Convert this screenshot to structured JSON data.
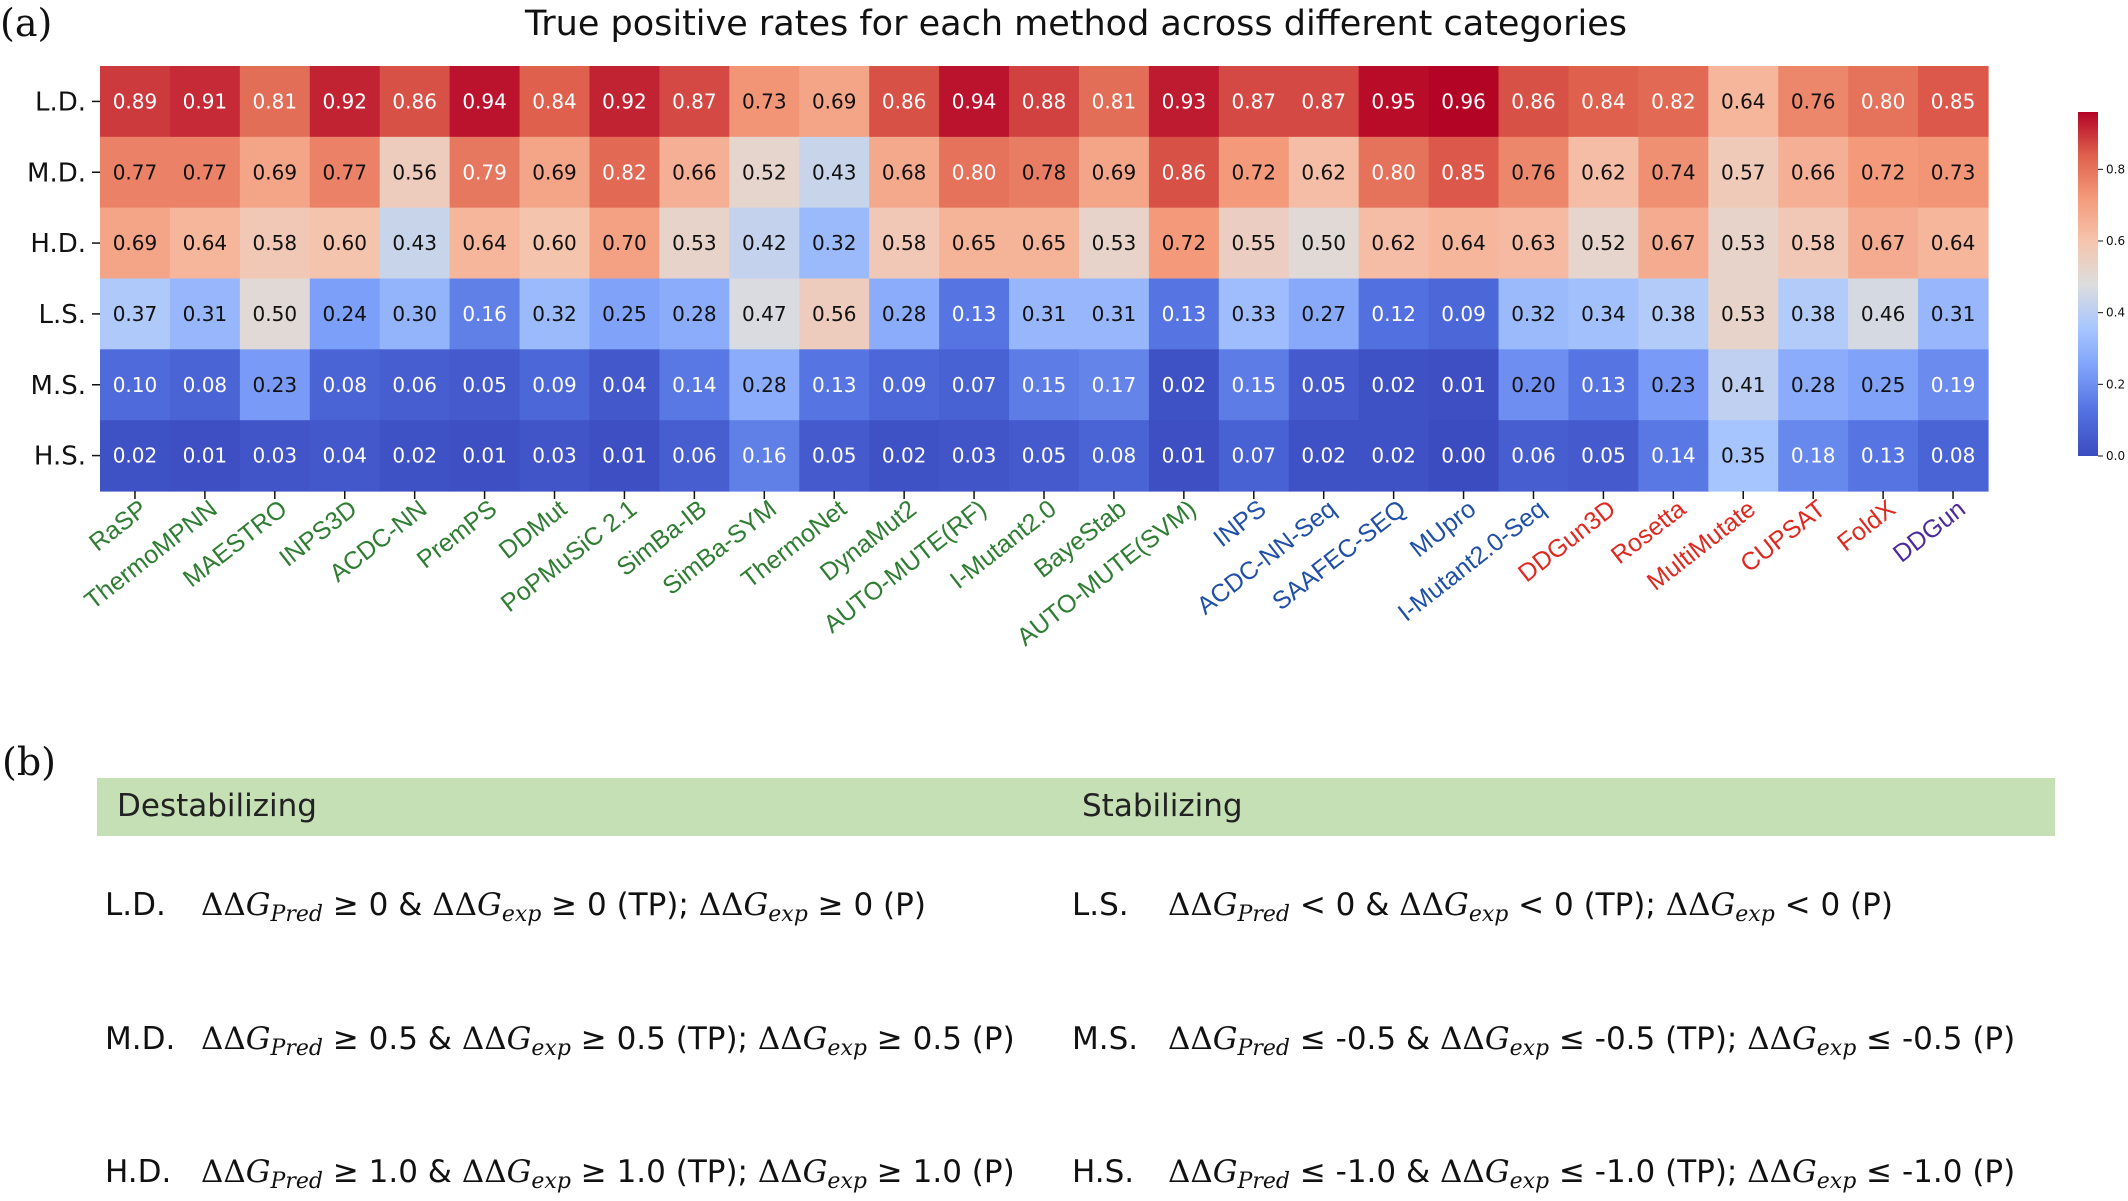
{
  "panel_a_label": "(a)",
  "panel_b_label": "(b)",
  "colors": {
    "group_green": "#2e7d32",
    "group_blue": "#1f4fa8",
    "group_red": "#e0281f",
    "group_purple": "#4b2a9c",
    "legend_bar": "#c5e0b4"
  },
  "chart_data": {
    "type": "heatmap",
    "title": "True positive rates for each method across different categories",
    "rows": [
      "L.D.",
      "M.D.",
      "H.D.",
      "L.S.",
      "M.S.",
      "H.S."
    ],
    "columns": [
      {
        "name": "RaSP",
        "group": "green"
      },
      {
        "name": "ThermoMPNN",
        "group": "green"
      },
      {
        "name": "MAESTRO",
        "group": "green"
      },
      {
        "name": "INPS3D",
        "group": "green"
      },
      {
        "name": "ACDC-NN",
        "group": "green"
      },
      {
        "name": "PremPS",
        "group": "green"
      },
      {
        "name": "DDMut",
        "group": "green"
      },
      {
        "name": "PoPMuSiC 2.1",
        "group": "green"
      },
      {
        "name": "SimBa-IB",
        "group": "green"
      },
      {
        "name": "SimBa-SYM",
        "group": "green"
      },
      {
        "name": "ThermoNet",
        "group": "green"
      },
      {
        "name": "DynaMut2",
        "group": "green"
      },
      {
        "name": "AUTO-MUTE(RF)",
        "group": "green"
      },
      {
        "name": "I-Mutant2.0",
        "group": "green"
      },
      {
        "name": "BayeStab",
        "group": "green"
      },
      {
        "name": "AUTO-MUTE(SVM)",
        "group": "green"
      },
      {
        "name": "INPS",
        "group": "blue"
      },
      {
        "name": "ACDC-NN-Seq",
        "group": "blue"
      },
      {
        "name": "SAAFEC-SEQ",
        "group": "blue"
      },
      {
        "name": "MUpro",
        "group": "blue"
      },
      {
        "name": "I-Mutant2.0-Seq",
        "group": "blue"
      },
      {
        "name": "DDGun3D",
        "group": "red"
      },
      {
        "name": "Rosetta",
        "group": "red"
      },
      {
        "name": "MultiMutate",
        "group": "red"
      },
      {
        "name": "CUPSAT",
        "group": "red"
      },
      {
        "name": "FoldX",
        "group": "red"
      },
      {
        "name": "DDGun",
        "group": "purple"
      }
    ],
    "values": [
      [
        0.89,
        0.91,
        0.81,
        0.92,
        0.86,
        0.94,
        0.84,
        0.92,
        0.87,
        0.73,
        0.69,
        0.86,
        0.94,
        0.88,
        0.81,
        0.93,
        0.87,
        0.87,
        0.95,
        0.96,
        0.86,
        0.84,
        0.82,
        0.64,
        0.76,
        0.8,
        0.85
      ],
      [
        0.77,
        0.77,
        0.69,
        0.77,
        0.56,
        0.79,
        0.69,
        0.82,
        0.66,
        0.52,
        0.43,
        0.68,
        0.8,
        0.78,
        0.69,
        0.86,
        0.72,
        0.62,
        0.8,
        0.85,
        0.76,
        0.62,
        0.74,
        0.57,
        0.66,
        0.72,
        0.73
      ],
      [
        0.69,
        0.64,
        0.58,
        0.6,
        0.43,
        0.64,
        0.6,
        0.7,
        0.53,
        0.42,
        0.32,
        0.58,
        0.65,
        0.65,
        0.53,
        0.72,
        0.55,
        0.5,
        0.62,
        0.64,
        0.63,
        0.52,
        0.67,
        0.53,
        0.58,
        0.67,
        0.64
      ],
      [
        0.37,
        0.31,
        0.5,
        0.24,
        0.3,
        0.16,
        0.32,
        0.25,
        0.28,
        0.47,
        0.56,
        0.28,
        0.13,
        0.31,
        0.31,
        0.13,
        0.33,
        0.27,
        0.12,
        0.09,
        0.32,
        0.34,
        0.38,
        0.53,
        0.38,
        0.46,
        0.31
      ],
      [
        0.1,
        0.08,
        0.23,
        0.08,
        0.06,
        0.05,
        0.09,
        0.04,
        0.14,
        0.28,
        0.13,
        0.09,
        0.07,
        0.15,
        0.17,
        0.02,
        0.15,
        0.05,
        0.02,
        0.01,
        0.2,
        0.13,
        0.23,
        0.41,
        0.28,
        0.25,
        0.19
      ],
      [
        0.02,
        0.01,
        0.03,
        0.04,
        0.02,
        0.01,
        0.03,
        0.01,
        0.06,
        0.16,
        0.05,
        0.02,
        0.03,
        0.05,
        0.08,
        0.01,
        0.07,
        0.02,
        0.02,
        0.0,
        0.06,
        0.05,
        0.14,
        0.35,
        0.18,
        0.13,
        0.08
      ]
    ],
    "colorbar": {
      "colormap": "coolwarm",
      "range": [
        0.0,
        0.96
      ],
      "ticks": [
        "0.0",
        "0.2",
        "0.4",
        "0.6",
        "0.8"
      ]
    },
    "cell_text_format": "2 decimals"
  },
  "panel_b": {
    "destabilizing_heading": "Destabilizing",
    "stabilizing_heading": "Stabilizing",
    "rows": [
      {
        "d_code": "L.D.",
        "d_thr": "≥ 0",
        "d_p": "≥ 0",
        "s_code": "L.S.",
        "s_thr": "< 0",
        "s_p": "< 0"
      },
      {
        "d_code": "M.D.",
        "d_thr": "≥ 0.5",
        "d_p": "≥ 0.5",
        "s_code": "M.S.",
        "s_thr": "≤ -0.5",
        "s_p": "≤ -0.5"
      },
      {
        "d_code": "H.D.",
        "d_thr": "≥ 1.0",
        "d_p": "≥ 1.0",
        "s_code": "H.S.",
        "s_thr": "≤ -1.0",
        "s_p": "≤ -1.0"
      }
    ],
    "symbols": {
      "ddg": "ΔΔ",
      "g": "G",
      "pred_sub": "Pred",
      "exp_sub": "exp",
      "amp": "&",
      "tp": "(TP);",
      "p": "(P)"
    }
  }
}
